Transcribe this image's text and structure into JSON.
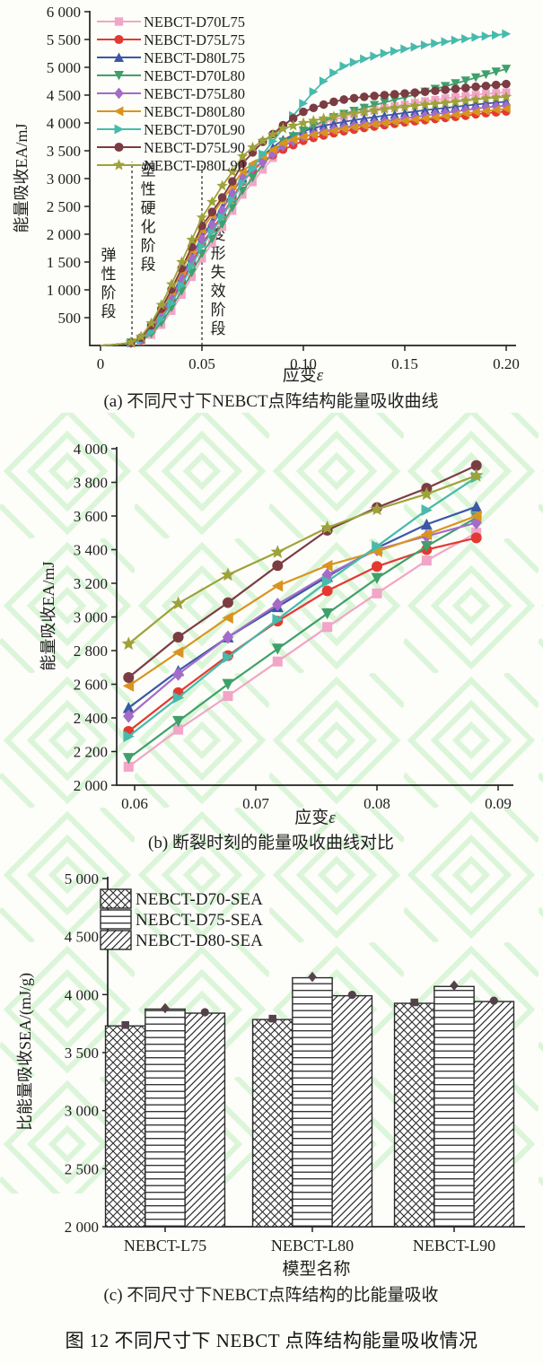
{
  "figure": {
    "title": "图 12  不同尺寸下 NEBCT 点阵结构能量吸收情况",
    "background": "#fdfdf9",
    "watermark_color": "#b9edb9",
    "axis_color": "#222222"
  },
  "chart_data": [
    {
      "id": "a",
      "type": "line",
      "caption": "(a) 不同尺寸下NEBCT点阵结构能量吸收曲线",
      "xlabel": "应变ε",
      "ylabel": "能量吸收EA/mJ",
      "xlim": [
        0,
        0.205
      ],
      "ylim": [
        0,
        6150
      ],
      "grid": false,
      "legend_position": "top-left-inside",
      "xticks": [
        0,
        0.05,
        0.1,
        0.15,
        0.2
      ],
      "xtick_labels": [
        "0",
        "0.05",
        "0.10",
        "0.15",
        "0.20"
      ],
      "yticks": [
        500,
        1000,
        1500,
        2000,
        2500,
        3000,
        3500,
        4000,
        4500,
        5000,
        5500,
        6000
      ],
      "ytick_labels": [
        "500",
        "1 000",
        "1 500",
        "2 000",
        "2 500",
        "3 000",
        "3 500",
        "4 000",
        "4 500",
        "5 000",
        "5 500",
        "6 000"
      ],
      "annotations": {
        "dashed_lines_x": [
          0.0155,
          0.05
        ],
        "dashed_line_top_value": 3300,
        "stages": [
          {
            "text": "弹性阶段",
            "x": 0.004,
            "y_top_value": 1530
          },
          {
            "text": "塑性硬化阶段",
            "x": 0.0235,
            "y_top_value": 3060
          },
          {
            "text": "变形失效阶段",
            "x": 0.058,
            "y_top_value": 1900
          }
        ]
      },
      "x": [
        0,
        0.005,
        0.01,
        0.015,
        0.02,
        0.025,
        0.03,
        0.035,
        0.04,
        0.045,
        0.05,
        0.055,
        0.06,
        0.065,
        0.07,
        0.075,
        0.08,
        0.085,
        0.09,
        0.095,
        0.1,
        0.105,
        0.11,
        0.115,
        0.12,
        0.125,
        0.13,
        0.135,
        0.14,
        0.145,
        0.15,
        0.155,
        0.16,
        0.165,
        0.17,
        0.175,
        0.18,
        0.185,
        0.19,
        0.195,
        0.2
      ],
      "series": [
        {
          "name": "NEBCT-D70L75",
          "color": "#F2A5C6",
          "marker": "square",
          "values": [
            0,
            10,
            25,
            50,
            80,
            190,
            370,
            620,
            910,
            1230,
            1560,
            1840,
            2130,
            2420,
            2710,
            2935,
            3160,
            3370,
            3580,
            3715,
            3850,
            3930,
            4000,
            4060,
            4110,
            4155,
            4200,
            4235,
            4270,
            4300,
            4330,
            4360,
            4390,
            4415,
            4440,
            4462,
            4484,
            4506,
            4524,
            4537,
            4550
          ]
        },
        {
          "name": "NEBCT-D75L75",
          "color": "#E23A31",
          "marker": "circle",
          "values": [
            0,
            10,
            25,
            50,
            100,
            260,
            500,
            800,
            1130,
            1480,
            1830,
            2080,
            2340,
            2640,
            2940,
            3130,
            3320,
            3420,
            3520,
            3600,
            3680,
            3730,
            3775,
            3815,
            3850,
            3880,
            3910,
            3935,
            3960,
            3985,
            4010,
            4030,
            4050,
            4070,
            4090,
            4110,
            4130,
            4155,
            4175,
            4190,
            4205
          ]
        },
        {
          "name": "NEBCT-D80L75",
          "color": "#3B57A8",
          "marker": "triangle-up",
          "values": [
            0,
            10,
            25,
            50,
            115,
            300,
            570,
            890,
            1240,
            1600,
            1960,
            2220,
            2480,
            2750,
            3020,
            3230,
            3420,
            3560,
            3700,
            3780,
            3850,
            3905,
            3950,
            3985,
            4020,
            4050,
            4080,
            4105,
            4130,
            4155,
            4180,
            4205,
            4230,
            4250,
            4270,
            4290,
            4310,
            4330,
            4350,
            4365,
            4380
          ]
        },
        {
          "name": "NEBCT-D70L80",
          "color": "#3FA06B",
          "marker": "triangle-down",
          "values": [
            0,
            10,
            25,
            50,
            85,
            210,
            410,
            680,
            980,
            1310,
            1650,
            1915,
            2180,
            2480,
            2780,
            3015,
            3250,
            3455,
            3660,
            3760,
            3860,
            3950,
            4030,
            4100,
            4160,
            4215,
            4270,
            4320,
            4370,
            4415,
            4460,
            4510,
            4560,
            4610,
            4660,
            4710,
            4760,
            4815,
            4870,
            4920,
            4970
          ]
        },
        {
          "name": "NEBCT-D75L80",
          "color": "#A46BC8",
          "marker": "diamond",
          "values": [
            0,
            10,
            25,
            50,
            110,
            290,
            550,
            860,
            1200,
            1560,
            1920,
            2170,
            2430,
            2740,
            3040,
            3180,
            3300,
            3440,
            3580,
            3670,
            3750,
            3800,
            3845,
            3885,
            3920,
            3950,
            3980,
            4005,
            4030,
            4055,
            4080,
            4105,
            4130,
            4155,
            4180,
            4205,
            4230,
            4255,
            4280,
            4295,
            4310
          ]
        },
        {
          "name": "NEBCT-D80L80",
          "color": "#D9941F",
          "marker": "triangle-left",
          "values": [
            0,
            10,
            25,
            50,
            130,
            340,
            630,
            970,
            1340,
            1710,
            2080,
            2340,
            2610,
            2870,
            3130,
            3270,
            3400,
            3520,
            3640,
            3700,
            3750,
            3790,
            3825,
            3860,
            3895,
            3925,
            3950,
            3975,
            4000,
            4020,
            4040,
            4060,
            4080,
            4100,
            4120,
            4145,
            4170,
            4195,
            4215,
            4235,
            4255
          ]
        },
        {
          "name": "NEBCT-D70L90",
          "color": "#47BAAC",
          "marker": "triangle-right",
          "values": [
            0,
            10,
            25,
            50,
            95,
            240,
            470,
            760,
            1080,
            1430,
            1780,
            2040,
            2310,
            2615,
            2920,
            3180,
            3440,
            3670,
            3900,
            4130,
            4350,
            4560,
            4750,
            4900,
            5020,
            5090,
            5150,
            5200,
            5250,
            5290,
            5330,
            5365,
            5400,
            5430,
            5460,
            5487,
            5512,
            5540,
            5560,
            5580,
            5600
          ]
        },
        {
          "name": "NEBCT-D75L90",
          "color": "#7B3C43",
          "marker": "circle",
          "values": [
            0,
            10,
            25,
            50,
            140,
            360,
            660,
            1010,
            1390,
            1770,
            2150,
            2400,
            2660,
            2950,
            3270,
            3470,
            3660,
            3800,
            3960,
            4080,
            4200,
            4270,
            4330,
            4380,
            4420,
            4445,
            4470,
            4485,
            4500,
            4515,
            4530,
            4545,
            4560,
            4577,
            4595,
            4612,
            4630,
            4650,
            4665,
            4683,
            4700
          ]
        },
        {
          "name": "NEBCT-D80L90",
          "color": "#9EA23A",
          "marker": "star",
          "values": [
            0,
            10,
            25,
            60,
            160,
            400,
            730,
            1100,
            1500,
            1900,
            2300,
            2580,
            2870,
            3120,
            3400,
            3560,
            3680,
            3790,
            3900,
            3950,
            4000,
            4040,
            4080,
            4115,
            4150,
            4175,
            4200,
            4225,
            4250,
            4270,
            4290,
            4310,
            4330,
            4345,
            4360,
            4380,
            4400,
            4420,
            4440,
            4455,
            4470
          ]
        }
      ]
    },
    {
      "id": "b",
      "type": "line",
      "caption": "(b) 断裂时刻的能量吸收曲线对比",
      "xlabel": "应变ε",
      "ylabel": "能量吸收EA/mJ",
      "xlim": [
        0.0585,
        0.0915
      ],
      "ylim": [
        2000,
        4050
      ],
      "grid": false,
      "legend_position": "none",
      "xticks": [
        0.06,
        0.07,
        0.08,
        0.09
      ],
      "xtick_labels": [
        "0.06",
        "0.07",
        "0.08",
        "0.09"
      ],
      "yticks": [
        2000,
        2200,
        2400,
        2600,
        2800,
        3000,
        3200,
        3400,
        3600,
        3800,
        4000
      ],
      "ytick_labels": [
        "2 000",
        "2 200",
        "2 400",
        "2 600",
        "2 800",
        "3 000",
        "3 200",
        "3 400",
        "3 600",
        "3 800",
        "4 000"
      ],
      "x": [
        0.0595,
        0.0636,
        0.0677,
        0.0718,
        0.0759,
        0.08,
        0.0841,
        0.0882
      ],
      "series": [
        {
          "name": "NEBCT-D70L75",
          "color": "#F2A5C6",
          "marker": "square",
          "values": [
            2110,
            2330,
            2530,
            2735,
            2940,
            3140,
            3335,
            3500
          ]
        },
        {
          "name": "NEBCT-D75L75",
          "color": "#E23A31",
          "marker": "circle",
          "values": [
            2320,
            2550,
            2770,
            2975,
            3155,
            3300,
            3400,
            3470
          ]
        },
        {
          "name": "NEBCT-D80L75",
          "color": "#3B57A8",
          "marker": "triangle-up",
          "values": [
            2460,
            2680,
            2880,
            3060,
            3240,
            3410,
            3550,
            3655
          ]
        },
        {
          "name": "NEBCT-D70L80",
          "color": "#3FA06B",
          "marker": "triangle-down",
          "values": [
            2160,
            2380,
            2600,
            2810,
            3020,
            3230,
            3420,
            3590
          ]
        },
        {
          "name": "NEBCT-D75L80",
          "color": "#A46BC8",
          "marker": "diamond",
          "values": [
            2410,
            2660,
            2880,
            3075,
            3250,
            3400,
            3480,
            3560
          ]
        },
        {
          "name": "NEBCT-D80L80",
          "color": "#D9941F",
          "marker": "triangle-left",
          "values": [
            2590,
            2790,
            2995,
            3185,
            3305,
            3390,
            3490,
            3600
          ]
        },
        {
          "name": "NEBCT-D70L90",
          "color": "#47BAAC",
          "marker": "triangle-right",
          "values": [
            2290,
            2520,
            2760,
            2985,
            3210,
            3420,
            3635,
            3830
          ]
        },
        {
          "name": "NEBCT-D75L90",
          "color": "#7B3C43",
          "marker": "circle",
          "values": [
            2640,
            2880,
            3085,
            3305,
            3515,
            3650,
            3765,
            3900
          ]
        },
        {
          "name": "NEBCT-D80L90",
          "color": "#9EA23A",
          "marker": "star",
          "values": [
            2840,
            3080,
            3250,
            3385,
            3530,
            3640,
            3730,
            3840
          ]
        }
      ]
    },
    {
      "id": "c",
      "type": "bar",
      "caption": "(c) 不同尺寸下NEBCT点阵结构的比能量吸收",
      "xlabel": "模型名称",
      "ylabel": "比能量吸收SEA/(mJ/g)",
      "ylim": [
        2000,
        5100
      ],
      "yticks": [
        2000,
        2500,
        3000,
        3500,
        4000,
        4500,
        5000
      ],
      "ytick_labels": [
        "2 000",
        "2 500",
        "3 000",
        "3 500",
        "4 000",
        "4 500",
        "5 000"
      ],
      "categories": [
        "NEBCT-L75",
        "NEBCT-L80",
        "NEBCT-L90"
      ],
      "marker_color": "#54424a",
      "series": [
        {
          "name": "NEBCT-D70-SEA",
          "pattern": "crosshatch",
          "marker": "square",
          "values": [
            3730,
            3785,
            3925
          ]
        },
        {
          "name": "NEBCT-D75-SEA",
          "pattern": "hlines",
          "marker": "diamond",
          "values": [
            3875,
            4145,
            4070
          ]
        },
        {
          "name": "NEBCT-D80-SEA",
          "pattern": "dlines",
          "marker": "circle",
          "values": [
            3840,
            3990,
            3940
          ]
        }
      ]
    }
  ]
}
